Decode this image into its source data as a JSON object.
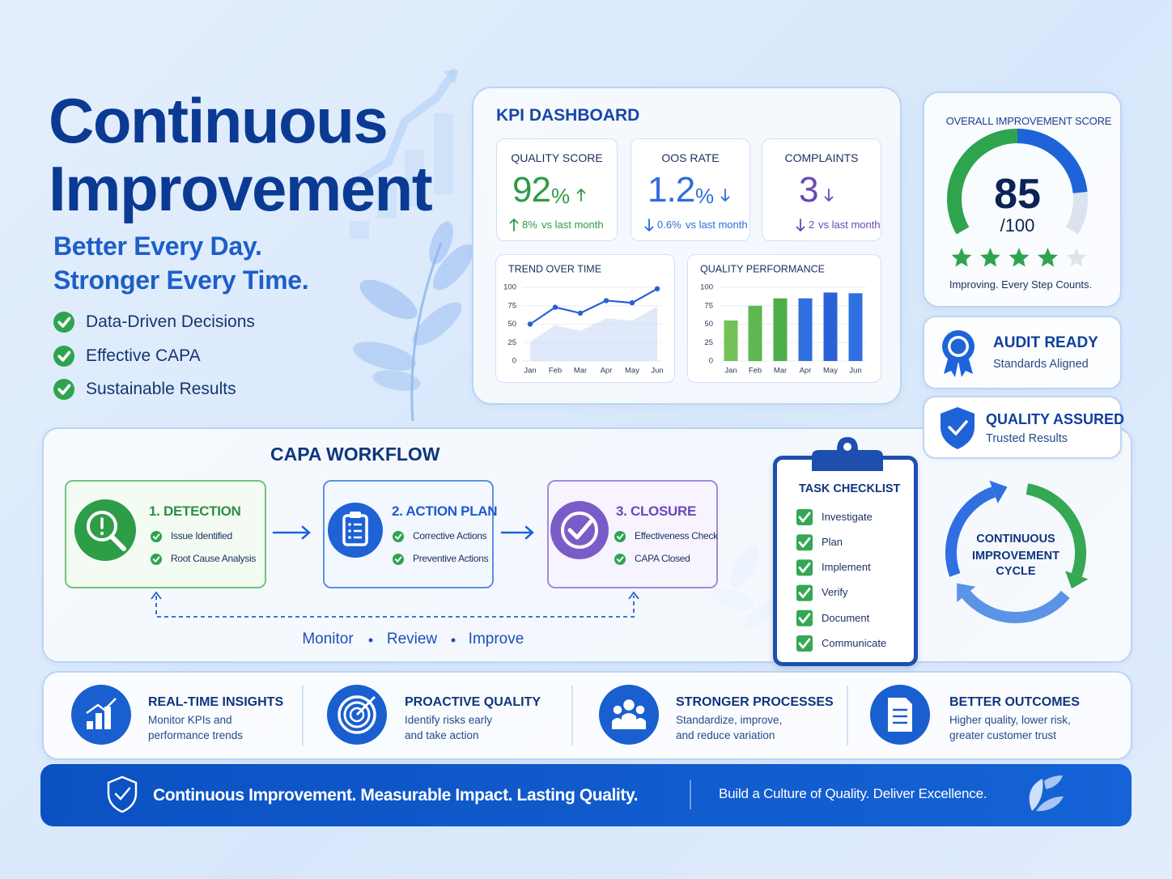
{
  "header": {
    "title_line1": "Continuous",
    "title_line2": "Improvement",
    "tagline_line1": "Better Every Day.",
    "tagline_line2": "Stronger Every Time.",
    "bullets": [
      "Data-Driven Decisions",
      "Effective CAPA",
      "Sustainable Results"
    ]
  },
  "kpi_dashboard": {
    "title": "KPI DASHBOARD",
    "cards": [
      {
        "label": "QUALITY SCORE",
        "value": 92,
        "unit": "%",
        "direction": "up",
        "change": "8%",
        "change_text": "vs last month",
        "color": "#2f9a47"
      },
      {
        "label": "OOS RATE",
        "value": 1.2,
        "unit": "%",
        "direction": "down",
        "change": "0.6%",
        "change_text": "vs last month",
        "color": "#2f6ddc"
      },
      {
        "label": "COMPLAINTS",
        "value": 3,
        "direction": "down",
        "change": "2",
        "change_text": "vs last month",
        "color": "#6a48b8"
      }
    ]
  },
  "chart_data": [
    {
      "type": "line",
      "title": "TREND OVER TIME",
      "categories": [
        "Jan",
        "Feb",
        "Mar",
        "Apr",
        "May",
        "Jun"
      ],
      "values": [
        50,
        73,
        65,
        82,
        79,
        98
      ],
      "color": "#2b5fd9",
      "ylim": [
        0,
        100
      ],
      "yticks": [
        0,
        25,
        50,
        75,
        100
      ]
    },
    {
      "type": "bar",
      "title": "QUALITY PERFORMANCE",
      "categories": [
        "Jan",
        "Feb",
        "Mar",
        "Apr",
        "May",
        "Jun"
      ],
      "values": [
        55,
        75,
        85,
        85,
        93,
        92
      ],
      "colors": [
        "#72c257",
        "#5cb84f",
        "#4dae4a",
        "#2f6fe0",
        "#2a62d8",
        "#2f6fe0"
      ],
      "ylim": [
        0,
        100
      ],
      "yticks": [
        0,
        25,
        50,
        75,
        100
      ]
    }
  ],
  "score_panel": {
    "title": "OVERALL IMPROVEMENT SCORE",
    "score": 85,
    "max": {
      "value": 100,
      "label": "/100"
    },
    "rating": 4,
    "rating_max": 5,
    "caption": "Improving. Every Step Counts."
  },
  "badges": [
    {
      "title": "AUDIT READY",
      "subtitle": "Standards Aligned"
    },
    {
      "title": "QUALITY ASSURED",
      "subtitle": "Trusted Results"
    }
  ],
  "capa_workflow": {
    "title": "CAPA WORKFLOW",
    "steps": [
      {
        "title": "1. DETECTION",
        "items": [
          "Issue Identified",
          "Root Cause Analysis"
        ]
      },
      {
        "title": "2. ACTION PLAN",
        "items": [
          "Corrective Actions",
          "Preventive Actions"
        ]
      },
      {
        "title": "3. CLOSURE",
        "items": [
          "Effectiveness Check",
          "CAPA Closed"
        ]
      }
    ],
    "loop": [
      "Monitor",
      "Review",
      "Improve"
    ]
  },
  "checklist": {
    "title": "TASK CHECKLIST",
    "items": [
      "Investigate",
      "Plan",
      "Implement",
      "Verify",
      "Document",
      "Communicate"
    ]
  },
  "cycle": {
    "label_lines": [
      "CONTINUOUS",
      "IMPROVEMENT",
      "CYCLE"
    ]
  },
  "features": [
    {
      "title": "REAL-TIME INSIGHTS",
      "desc": [
        "Monitor KPIs and",
        "performance trends"
      ]
    },
    {
      "title": "PROACTIVE QUALITY",
      "desc": [
        "Identify risks early",
        "and take action"
      ]
    },
    {
      "title": "STRONGER PROCESSES",
      "desc": [
        "Standardize, improve,",
        "and reduce variation"
      ]
    },
    {
      "title": "BETTER OUTCOMES",
      "desc": [
        "Higher quality, lower risk,",
        "greater customer trust"
      ]
    }
  ],
  "footer": {
    "main": "Continuous Improvement. Measurable Impact. Lasting Quality.",
    "secondary": "Build a Culture of Quality. Deliver Excellence."
  }
}
